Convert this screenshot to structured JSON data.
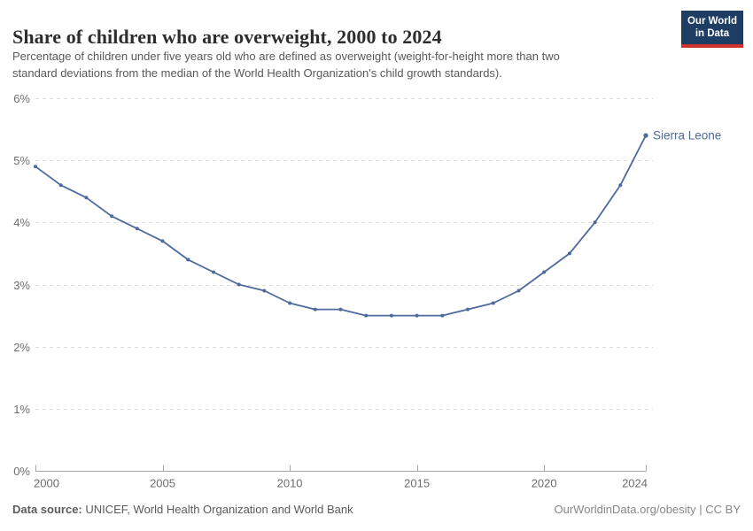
{
  "header": {
    "title": "Share of children who are overweight, 2000 to 2024",
    "subtitle_line1": "Percentage of children under five years old who are defined as overweight (weight-for-height more than two",
    "subtitle_line2": "standard deviations from the median of the World Health Organization's child growth standards)."
  },
  "logo": {
    "line1": "Our World",
    "line2": "in Data",
    "bg_color": "#1d3d63",
    "bar_color": "#cc332c"
  },
  "footer": {
    "source_label": "Data source:",
    "source_text": " UNICEF, World Health Organization and World Bank",
    "credit": "OurWorldinData.org/obesity | CC BY"
  },
  "chart_data": {
    "type": "line",
    "title": "Share of children who are overweight, 2000 to 2024",
    "x": [
      2000,
      2001,
      2002,
      2003,
      2004,
      2005,
      2006,
      2007,
      2008,
      2009,
      2010,
      2011,
      2012,
      2013,
      2014,
      2015,
      2016,
      2017,
      2018,
      2019,
      2020,
      2021,
      2022,
      2023,
      2024
    ],
    "series": [
      {
        "name": "Sierra Leone",
        "color": "#4C6A9C",
        "values": [
          4.9,
          4.6,
          4.4,
          4.1,
          3.9,
          3.7,
          3.4,
          3.2,
          3.0,
          2.9,
          2.7,
          2.6,
          2.6,
          2.5,
          2.5,
          2.5,
          2.5,
          2.6,
          2.7,
          2.9,
          3.2,
          3.5,
          4.0,
          4.6,
          5.4
        ]
      }
    ],
    "xlabel": "",
    "ylabel": "",
    "xlim": [
      2000,
      2024
    ],
    "ylim": [
      0,
      6
    ],
    "xticks": [
      2000,
      2005,
      2010,
      2015,
      2020,
      2024
    ],
    "yticks": [
      0,
      1,
      2,
      3,
      4,
      5,
      6
    ],
    "ytick_suffix": "%",
    "grid": "horizontal-dashed",
    "legend_position": "end-of-line-label",
    "grid_color": "#dcdcdc",
    "axis_color": "#a5a5a5",
    "tick_label_color": "#6e6e6e"
  }
}
